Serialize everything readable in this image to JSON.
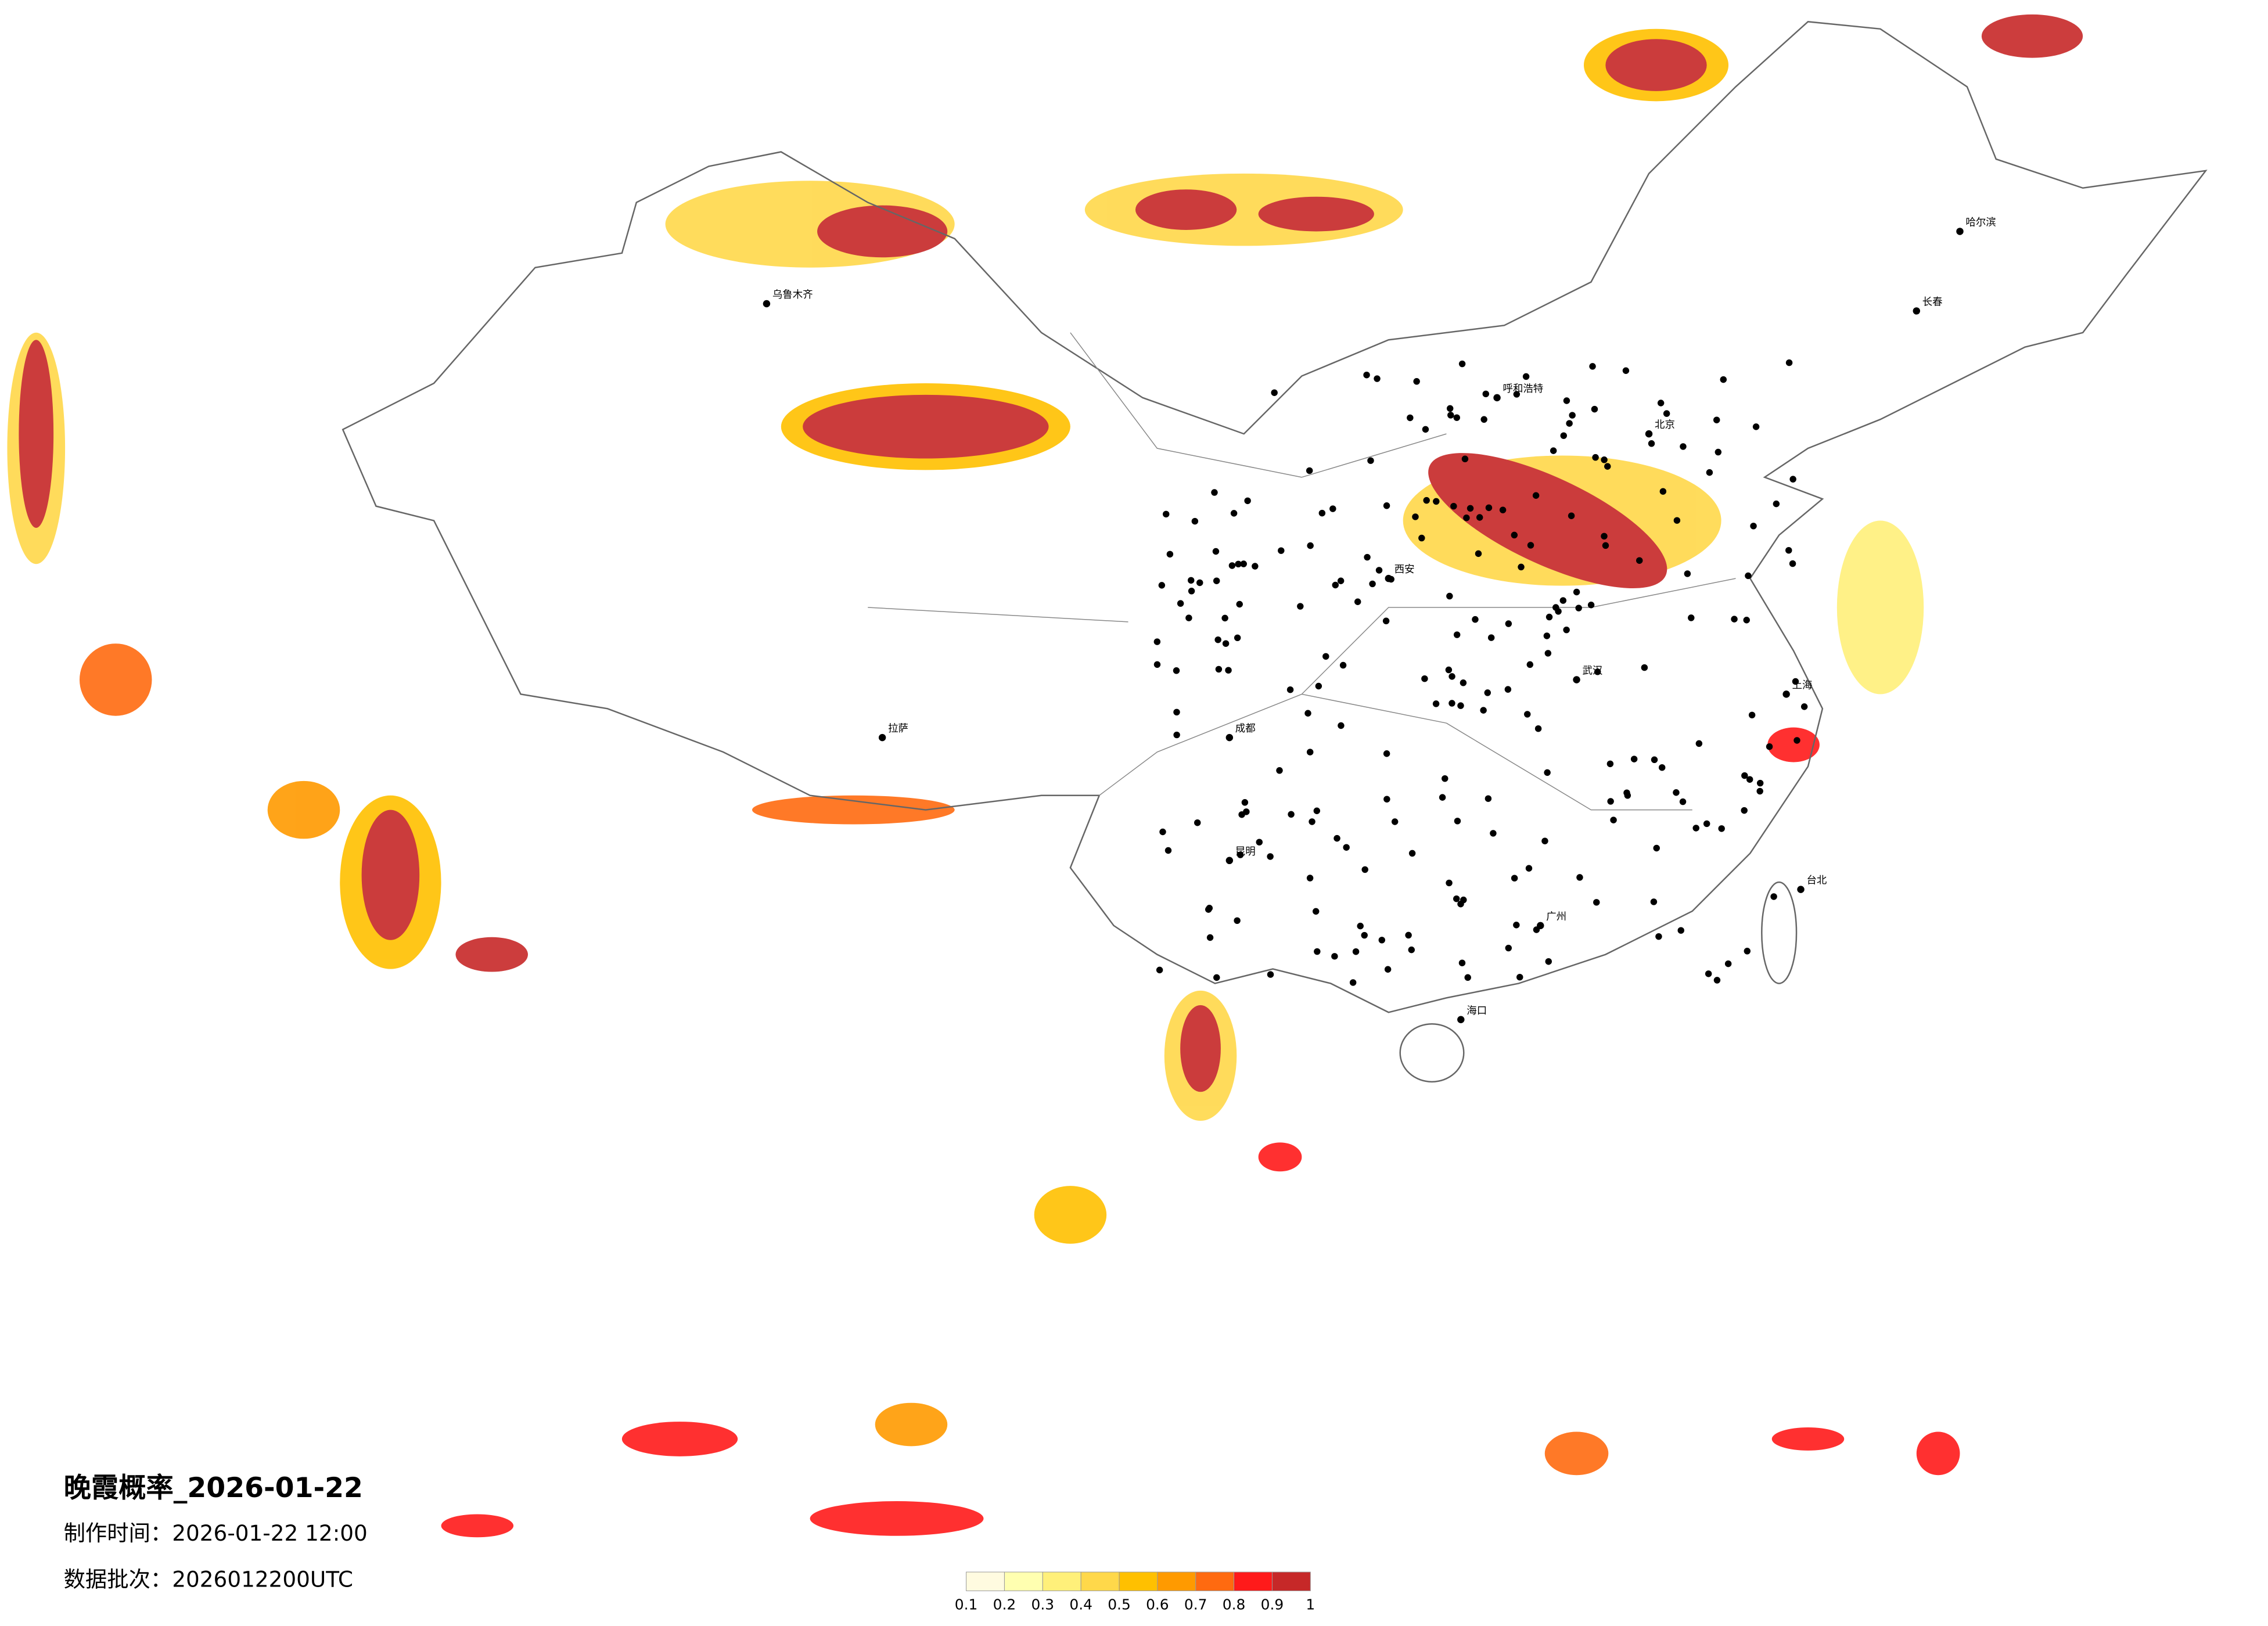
{
  "title": "晚霞概率_2026-01-22",
  "made_time": "制作时间：2026-01-22 12:00",
  "batch": "数据批次：2026012200UTC",
  "legend": {
    "colors": [
      "#fffbe0",
      "#ffffb0",
      "#fff07a",
      "#ffd84a",
      "#ffc000",
      "#ff9a00",
      "#ff6a10",
      "#ff1a1a",
      "#c62828"
    ],
    "ticks": [
      0.1,
      0.2,
      0.3,
      0.4,
      0.5,
      0.6,
      0.7,
      0.8,
      0.9,
      1
    ]
  },
  "cities": [
    "乌鲁木齐",
    "哈尔滨",
    "北京",
    "上海",
    "广州",
    "拉萨",
    "成都",
    "西安",
    "武汉",
    "长春",
    "呼和浩特",
    "昆明",
    "海口",
    "台北"
  ]
}
